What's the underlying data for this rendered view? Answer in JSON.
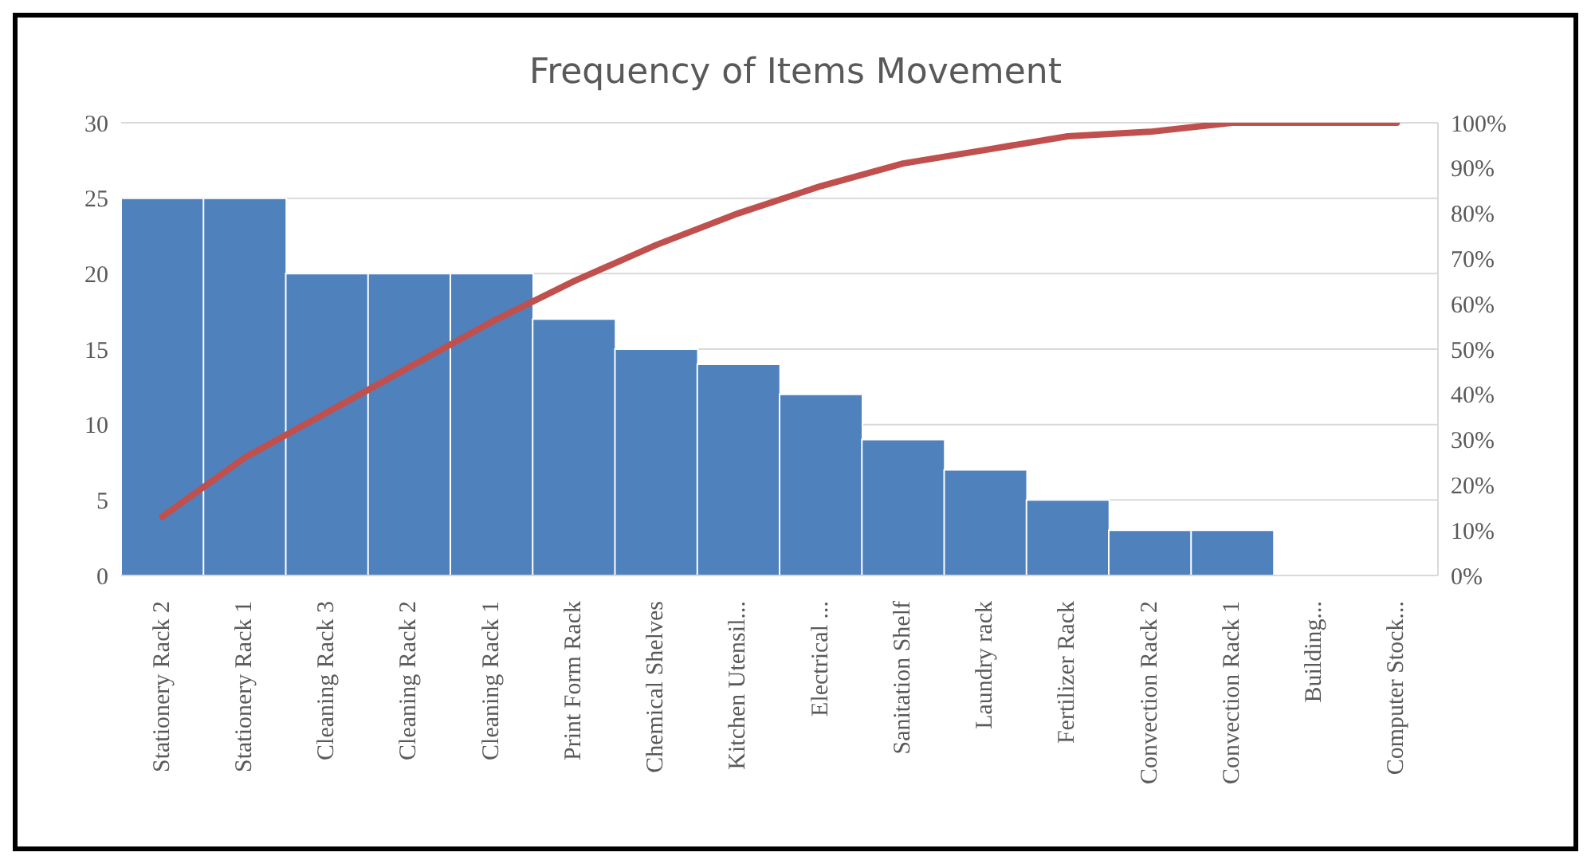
{
  "chart_data": {
    "type": "bar",
    "title": "Frequency of Items Movement",
    "categories": [
      "Stationery Rack 2",
      "Stationery Rack 1",
      "Cleaning Rack 3",
      "Cleaning Rack 2",
      "Cleaning Rack 1",
      "Print Form Rack",
      "Chemical Shelves",
      "Kitchen Utensil...",
      "Electrical ...",
      "Sanitation Shelf",
      "Laundry rack",
      "Fertilizer Rack",
      "Convection Rack 2",
      "Convection Rack 1",
      "Building...",
      "Computer Stock..."
    ],
    "series": [
      {
        "color": "#4f81bd",
        "values": [
          25,
          25,
          20,
          20,
          20,
          17,
          15,
          14,
          12,
          9,
          7,
          5,
          3,
          3,
          0,
          0
        ]
      },
      {
        "type": "line",
        "axis": "y2",
        "color": "#c0504d",
        "values": [
          13,
          26,
          36,
          46,
          56,
          65,
          73,
          80,
          86,
          91,
          94,
          97,
          98,
          100,
          100,
          100
        ]
      }
    ],
    "ylim": [
      0,
      30
    ],
    "yticks": [
      0,
      5,
      10,
      15,
      20,
      25,
      30
    ],
    "y2lim": [
      0,
      100
    ],
    "y2ticks": [
      {
        "value": 0,
        "label": "0%"
      },
      {
        "value": 10,
        "label": "10%"
      },
      {
        "value": 20,
        "label": "20%"
      },
      {
        "value": 30,
        "label": "30%"
      },
      {
        "value": 40,
        "label": "40%"
      },
      {
        "value": 50,
        "label": "50%"
      },
      {
        "value": 60,
        "label": "60%"
      },
      {
        "value": 70,
        "label": "70%"
      },
      {
        "value": 80,
        "label": "80%"
      },
      {
        "value": 90,
        "label": "90%"
      },
      {
        "value": 100,
        "label": "100%"
      }
    ],
    "grid": "y",
    "marker": "none"
  }
}
